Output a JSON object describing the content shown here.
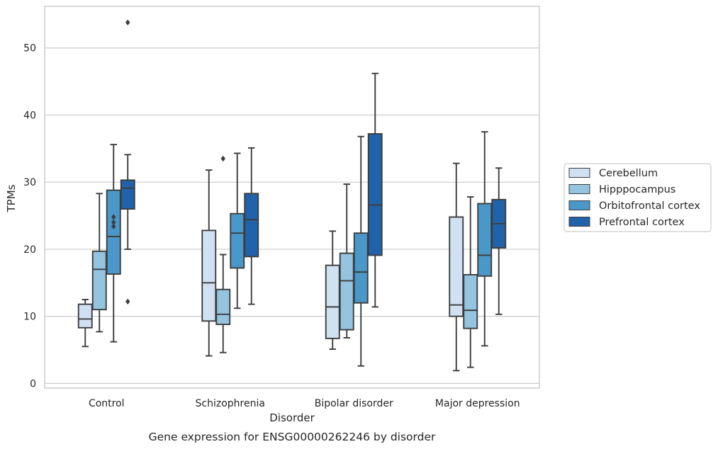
{
  "chart_data": {
    "type": "box",
    "title": "",
    "caption": "Gene expression for ENSG00000262246 by disorder",
    "xlabel": "Disorder",
    "ylabel": "TPMs",
    "ylim": [
      -0.7,
      56.2
    ],
    "yticks": [
      0,
      10,
      20,
      30,
      40,
      50
    ],
    "grid": "horizontal",
    "legend_position": "right",
    "categories": [
      "Control",
      "Schizophrenia",
      "Bipolar disorder",
      "Major depression"
    ],
    "series": [
      {
        "name": "Cerebellum",
        "color": "#d0e1f2",
        "boxes": [
          {
            "whislo": 5.5,
            "q1": 8.3,
            "med": 9.6,
            "q3": 11.8,
            "whishi": 12.5,
            "fliers": []
          },
          {
            "whislo": 4.1,
            "q1": 9.3,
            "med": 15.0,
            "q3": 22.8,
            "whishi": 31.8,
            "fliers": []
          },
          {
            "whislo": 5.1,
            "q1": 6.7,
            "med": 11.4,
            "q3": 17.6,
            "whishi": 22.7,
            "fliers": []
          },
          {
            "whislo": 1.9,
            "q1": 10.0,
            "med": 11.7,
            "q3": 24.8,
            "whishi": 32.8,
            "fliers": []
          }
        ]
      },
      {
        "name": "Hipppocampus",
        "color": "#94c4df",
        "boxes": [
          {
            "whislo": 7.7,
            "q1": 11.0,
            "med": 17.0,
            "q3": 19.7,
            "whishi": 28.3,
            "fliers": []
          },
          {
            "whislo": 4.6,
            "q1": 8.8,
            "med": 10.3,
            "q3": 14.0,
            "whishi": 19.2,
            "fliers": [
              33.5
            ]
          },
          {
            "whislo": 6.8,
            "q1": 8.0,
            "med": 15.3,
            "q3": 19.4,
            "whishi": 29.7,
            "fliers": []
          },
          {
            "whislo": 2.4,
            "q1": 8.2,
            "med": 10.9,
            "q3": 16.2,
            "whishi": 27.8,
            "fliers": []
          }
        ]
      },
      {
        "name": "Orbitofrontal cortex",
        "color": "#4a98c9",
        "boxes": [
          {
            "whislo": 6.2,
            "q1": 16.3,
            "med": 21.9,
            "q3": 28.8,
            "whishi": 35.6,
            "fliers": [
              23.4,
              24.0,
              24.8
            ]
          },
          {
            "whislo": 11.2,
            "q1": 17.2,
            "med": 22.4,
            "q3": 25.3,
            "whishi": 34.3,
            "fliers": []
          },
          {
            "whislo": 2.6,
            "q1": 12.0,
            "med": 16.6,
            "q3": 22.4,
            "whishi": 36.8,
            "fliers": []
          },
          {
            "whislo": 5.6,
            "q1": 16.0,
            "med": 19.1,
            "q3": 26.8,
            "whishi": 37.5,
            "fliers": []
          }
        ]
      },
      {
        "name": "Prefrontal cortex",
        "color": "#2163aa",
        "boxes": [
          {
            "whislo": 20.0,
            "q1": 26.0,
            "med": 29.1,
            "q3": 30.3,
            "whishi": 34.1,
            "fliers": [
              53.8,
              12.2
            ]
          },
          {
            "whislo": 11.8,
            "q1": 18.9,
            "med": 24.4,
            "q3": 28.3,
            "whishi": 35.1,
            "fliers": []
          },
          {
            "whislo": 11.4,
            "q1": 19.1,
            "med": 26.6,
            "q3": 37.2,
            "whishi": 46.2,
            "fliers": []
          },
          {
            "whislo": 10.3,
            "q1": 20.2,
            "med": 23.8,
            "q3": 27.4,
            "whishi": 32.1,
            "fliers": []
          }
        ]
      }
    ]
  }
}
